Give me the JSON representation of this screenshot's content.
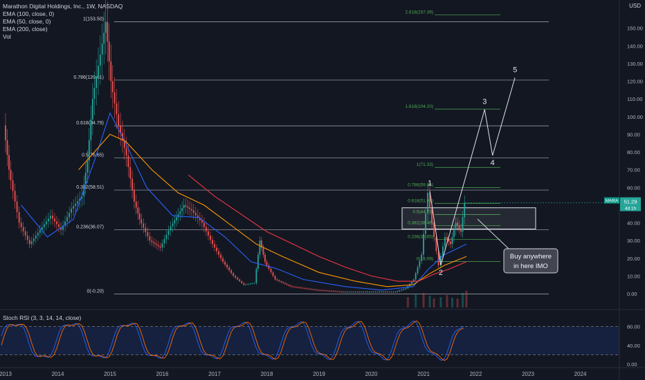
{
  "header": {
    "title": "Marathon Digital Holdings, Inc., 1W, NASDAQ",
    "indicators": [
      "EMA (100, close, 0)",
      "EMA (50, close, 0)",
      "EMA (200, close)",
      "Vol"
    ],
    "currency": "USD"
  },
  "price_tag": {
    "symbol": "MARA",
    "price": "51.29",
    "countdown": "4d 1h"
  },
  "rsi": {
    "title": "Stoch RSI (3, 3, 14, 14, close)",
    "upper": 80,
    "lower": 20,
    "ticks": [
      "80.00",
      "40.00",
      "0.00"
    ]
  },
  "annotation": {
    "text": "Buy anywhere in here IMO",
    "line1": "Buy anywhere",
    "line2": "in here IMO"
  },
  "colors": {
    "background": "#131722",
    "up": "#26a69a",
    "down": "#ef5350",
    "ema50": "#2962ff",
    "ema100": "#ff9800",
    "ema200": "#f23645",
    "fib": "#d1d4dc",
    "fib_green": "#4caf50"
  },
  "chart_data": {
    "type": "candlestick",
    "x_ticks": [
      "2013",
      "2014",
      "2015",
      "2016",
      "2017",
      "2018",
      "2019",
      "2020",
      "2021",
      "2022",
      "2023",
      "2024"
    ],
    "y_ticks": [
      "150.00",
      "140.00",
      "130.00",
      "120.00",
      "110.00",
      "100.00",
      "90.00",
      "80.00",
      "70.00",
      "60.00",
      "50.00",
      "40.00",
      "30.00",
      "20.00",
      "10.00",
      "0.00"
    ],
    "ylim": [
      -5,
      158
    ],
    "fib_retracement": [
      {
        "label": "1(153.50)",
        "value": 153.5
      },
      {
        "label": "0.786(120.61)",
        "value": 120.61
      },
      {
        "label": "0.618(94.79)",
        "value": 94.79
      },
      {
        "label": "0.5(76.65)",
        "value": 76.65
      },
      {
        "label": "0.382(58.51)",
        "value": 58.51
      },
      {
        "label": "0.236(36.07)",
        "value": 36.07
      },
      {
        "label": "0(-0.20)",
        "value": -0.2
      }
    ],
    "fib_extension": [
      {
        "label": "2.618(157.39)",
        "value": 157.39
      },
      {
        "label": "1.618(104.20)",
        "value": 104.2
      },
      {
        "label": "1(71.33)",
        "value": 71.33
      },
      {
        "label": "0.786(59.94)",
        "value": 59.94
      },
      {
        "label": "0.618(51.01)",
        "value": 51.01
      },
      {
        "label": "0.5(44.73)",
        "value": 44.73
      },
      {
        "label": "0.382(38.46)",
        "value": 38.46
      },
      {
        "label": "0.236(30.65)",
        "value": 30.65
      },
      {
        "label": "0(18.09)",
        "value": 18.09
      }
    ],
    "waves": [
      {
        "label": "1",
        "date": 2021.12,
        "value": 58
      },
      {
        "label": "2",
        "date": 2021.33,
        "value": 16
      },
      {
        "label": "3",
        "date": 2022.17,
        "value": 104
      },
      {
        "label": "4",
        "date": 2022.32,
        "value": 78
      },
      {
        "label": "5",
        "date": 2022.75,
        "value": 122
      }
    ],
    "price_path": [
      [
        2013.0,
        95
      ],
      [
        2013.1,
        70
      ],
      [
        2013.3,
        40
      ],
      [
        2013.5,
        28
      ],
      [
        2013.7,
        36
      ],
      [
        2013.9,
        44
      ],
      [
        2014.1,
        36
      ],
      [
        2014.3,
        48
      ],
      [
        2014.5,
        55
      ],
      [
        2014.6,
        75
      ],
      [
        2014.7,
        110
      ],
      [
        2014.85,
        135
      ],
      [
        2014.95,
        153.5
      ],
      [
        2015.05,
        120
      ],
      [
        2015.2,
        95
      ],
      [
        2015.35,
        78
      ],
      [
        2015.5,
        52
      ],
      [
        2015.6,
        42
      ],
      [
        2015.8,
        30
      ],
      [
        2016.0,
        26
      ],
      [
        2016.2,
        38
      ],
      [
        2016.45,
        50
      ],
      [
        2016.6,
        47
      ],
      [
        2016.8,
        40
      ],
      [
        2017.0,
        28
      ],
      [
        2017.2,
        18
      ],
      [
        2017.4,
        10
      ],
      [
        2017.6,
        5
      ],
      [
        2017.8,
        6
      ],
      [
        2017.9,
        30
      ],
      [
        2018.0,
        18
      ],
      [
        2018.2,
        8
      ],
      [
        2018.5,
        4
      ],
      [
        2019.0,
        2
      ],
      [
        2019.5,
        1
      ],
      [
        2020.0,
        1
      ],
      [
        2020.5,
        1
      ],
      [
        2020.7,
        3
      ],
      [
        2020.85,
        8
      ],
      [
        2021.0,
        22
      ],
      [
        2021.12,
        57
      ],
      [
        2021.2,
        40
      ],
      [
        2021.33,
        16
      ],
      [
        2021.45,
        32
      ],
      [
        2021.55,
        28
      ],
      [
        2021.65,
        40
      ],
      [
        2021.75,
        35
      ],
      [
        2021.82,
        51.29
      ]
    ],
    "series": [
      {
        "name": "EMA (50, close, 0)",
        "color": "#2962ff",
        "points": [
          [
            2013.3,
            50
          ],
          [
            2013.8,
            32
          ],
          [
            2014.3,
            42
          ],
          [
            2014.7,
            75
          ],
          [
            2015.0,
            102
          ],
          [
            2015.3,
            85
          ],
          [
            2015.7,
            60
          ],
          [
            2016.2,
            44
          ],
          [
            2016.7,
            43
          ],
          [
            2017.2,
            32
          ],
          [
            2017.7,
            18
          ],
          [
            2018.2,
            14
          ],
          [
            2018.7,
            8
          ],
          [
            2019.5,
            4
          ],
          [
            2020.2,
            2
          ],
          [
            2020.8,
            4
          ],
          [
            2021.1,
            14
          ],
          [
            2021.4,
            22
          ],
          [
            2021.82,
            28
          ]
        ]
      },
      {
        "name": "EMA (100, close, 0)",
        "color": "#ff9800",
        "points": [
          [
            2014.4,
            70
          ],
          [
            2014.7,
            80
          ],
          [
            2015.0,
            90
          ],
          [
            2015.3,
            86
          ],
          [
            2015.8,
            70
          ],
          [
            2016.3,
            57
          ],
          [
            2016.8,
            50
          ],
          [
            2017.3,
            39
          ],
          [
            2017.8,
            28
          ],
          [
            2018.3,
            21
          ],
          [
            2019.0,
            12
          ],
          [
            2019.7,
            7
          ],
          [
            2020.3,
            4
          ],
          [
            2020.8,
            5
          ],
          [
            2021.1,
            11
          ],
          [
            2021.4,
            16
          ],
          [
            2021.82,
            21
          ]
        ]
      },
      {
        "name": "EMA (200, close)",
        "color": "#f23645",
        "points": [
          [
            2016.5,
            67
          ],
          [
            2017.0,
            55
          ],
          [
            2017.5,
            45
          ],
          [
            2018.0,
            35
          ],
          [
            2018.5,
            28
          ],
          [
            2019.0,
            21
          ],
          [
            2019.5,
            15
          ],
          [
            2020.0,
            10
          ],
          [
            2020.5,
            7
          ],
          [
            2020.9,
            7
          ],
          [
            2021.2,
            11
          ],
          [
            2021.5,
            14
          ],
          [
            2021.82,
            18
          ]
        ]
      }
    ]
  }
}
